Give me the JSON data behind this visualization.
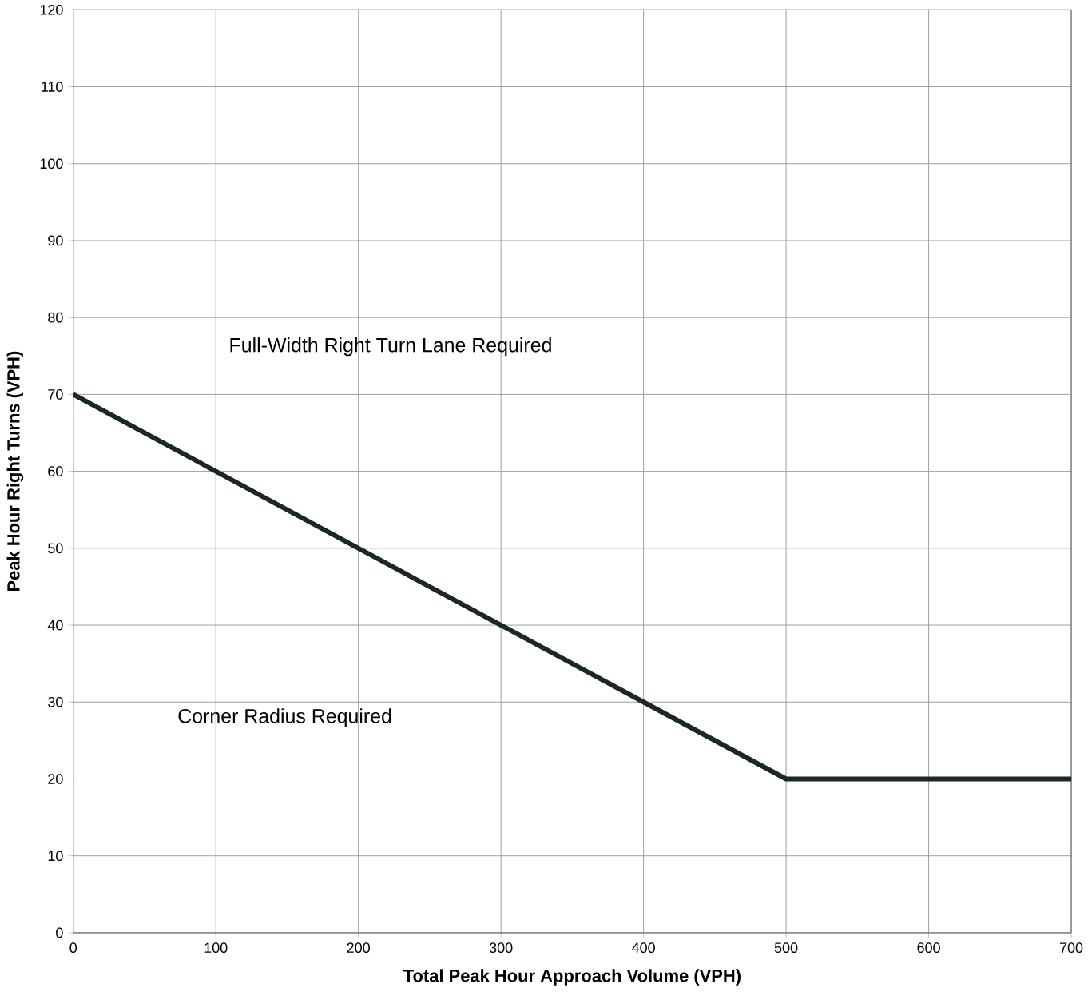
{
  "chart_data": {
    "type": "line",
    "xlabel": "Total Peak Hour Approach Volume (VPH)",
    "ylabel": "Peak Hour Right Turns (VPH)",
    "x": [
      0,
      500,
      700
    ],
    "series": [
      {
        "color": "#1c2826",
        "values": [
          70,
          20,
          20
        ]
      }
    ],
    "xlim": [
      0,
      700
    ],
    "ylim": [
      0,
      120
    ],
    "xticks": [
      0,
      100,
      200,
      300,
      400,
      500,
      600,
      700
    ],
    "yticks": [
      0,
      10,
      20,
      30,
      40,
      50,
      60,
      70,
      80,
      90,
      100,
      110,
      120
    ],
    "grid": true,
    "marker": "none",
    "line_style": "solid",
    "annotations": [
      "Full-Width Right Turn Lane Required",
      "Corner Radius Required"
    ]
  }
}
